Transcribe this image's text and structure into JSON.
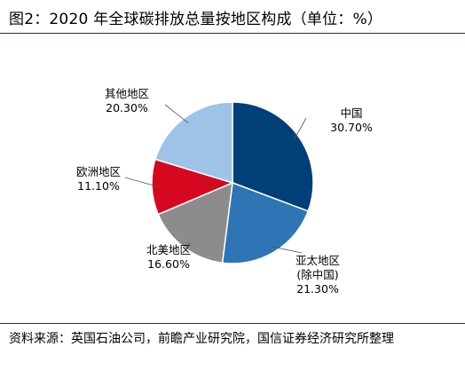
{
  "title": "图2：2020 年全球碳排放总量按地区构成（单位：%）",
  "source": "资料来源：英国石油公司，前瞻产业研究院，国信证券经济研究所整理",
  "chart_data": {
    "type": "pie",
    "slices": [
      {
        "label": [
          "中国"
        ],
        "value_text": "30.70%",
        "value": 30.7,
        "color": "#003f78"
      },
      {
        "label": [
          "亚太地区",
          "(除中国)"
        ],
        "value_text": "21.30%",
        "value": 21.3,
        "color": "#2e75b6"
      },
      {
        "label": [
          "北美地区"
        ],
        "value_text": "16.60%",
        "value": 16.6,
        "color": "#8c8c8c"
      },
      {
        "label": [
          "欧洲地区"
        ],
        "value_text": "11.10%",
        "value": 11.1,
        "color": "#d6081f"
      },
      {
        "label": [
          "其他地区"
        ],
        "value_text": "20.30%",
        "value": 20.3,
        "color": "#9dc3e6"
      }
    ]
  }
}
